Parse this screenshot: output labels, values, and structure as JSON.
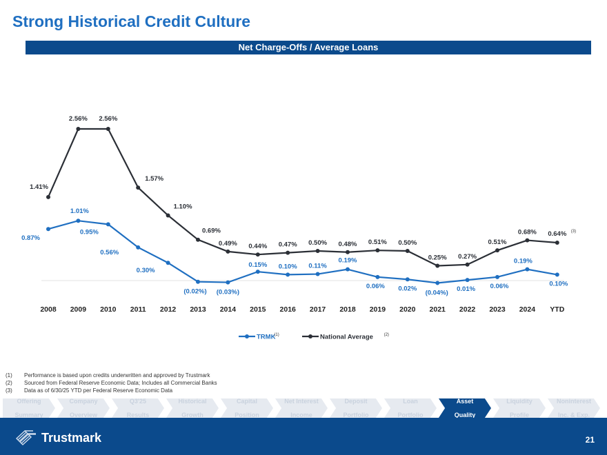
{
  "title": "Strong Historical Credit Culture",
  "banner": "Net Charge-Offs / Average Loans",
  "chart_data": {
    "type": "line",
    "title": "Net Charge-Offs / Average Loans",
    "categories": [
      "2008",
      "2009",
      "2010",
      "2011",
      "2012",
      "2013",
      "2014",
      "2015",
      "2016",
      "2017",
      "2018",
      "2019",
      "2020",
      "2021",
      "2022",
      "2023",
      "2024",
      "YTD"
    ],
    "ylim": [
      -0.05,
      2.6
    ],
    "series": [
      {
        "name": "TRMK",
        "legend_label": "TRMK",
        "legend_sup": "(1)",
        "color": "#1f6fc1",
        "values": [
          0.87,
          1.01,
          0.95,
          0.56,
          0.3,
          -0.02,
          -0.03,
          0.15,
          0.1,
          0.11,
          0.19,
          0.06,
          0.02,
          -0.04,
          0.01,
          0.06,
          0.19,
          0.1
        ],
        "labels": [
          "0.87%",
          "1.01%",
          "0.95%",
          "0.56%",
          "0.30%",
          "(0.02%)",
          "(0.03%)",
          "0.15%",
          "0.10%",
          "0.11%",
          "0.19%",
          "0.06%",
          "0.02%",
          "(0.04%)",
          "0.01%",
          "0.06%",
          "0.19%",
          "0.10%"
        ]
      },
      {
        "name": "National Average",
        "legend_label": "National Average",
        "legend_sup": "(2)",
        "color": "#2b2f36",
        "values": [
          1.41,
          2.56,
          2.56,
          1.57,
          1.1,
          0.69,
          0.49,
          0.44,
          0.47,
          0.5,
          0.48,
          0.51,
          0.5,
          0.25,
          0.27,
          0.51,
          0.68,
          0.64
        ],
        "labels": [
          "1.41%",
          "2.56%",
          "2.56%",
          "1.57%",
          "1.10%",
          "0.69%",
          "0.49%",
          "0.44%",
          "0.47%",
          "0.50%",
          "0.48%",
          "0.51%",
          "0.50%",
          "0.25%",
          "0.27%",
          "0.51%",
          "0.68%",
          "0.64%"
        ],
        "last_label_sup": "(3)"
      }
    ]
  },
  "footnotes": [
    {
      "num": "(1)",
      "text": "Performance is based upon credits underwritten and approved by Trustmark"
    },
    {
      "num": "(2)",
      "text": "Sourced from Federal Reserve Economic Data; Includes all Commercial Banks"
    },
    {
      "num": "(3)",
      "text": "Data as of 6/30/25 YTD per Federal Reserve Economic Data"
    }
  ],
  "nav": {
    "items": [
      {
        "line1": "Offering",
        "line2": "Summary"
      },
      {
        "line1": "Company",
        "line2": "Overview"
      },
      {
        "line1": "Q3'25",
        "line2": "Results"
      },
      {
        "line1": "Historical",
        "line2": "Growth"
      },
      {
        "line1": "Capital",
        "line2": "Position"
      },
      {
        "line1": "Net Interest",
        "line2": "Income"
      },
      {
        "line1": "Deposit",
        "line2": "Portfolio"
      },
      {
        "line1": "Loan",
        "line2": "Portfolio"
      },
      {
        "line1": "Asset",
        "line2": "Quality"
      },
      {
        "line1": "Liquidity",
        "line2": "Profile"
      },
      {
        "line1": "Noninterest",
        "line2": "Inc. & Exp."
      }
    ],
    "active_index": 8
  },
  "footer": {
    "logo_text": "Trustmark",
    "page_number": "21"
  }
}
